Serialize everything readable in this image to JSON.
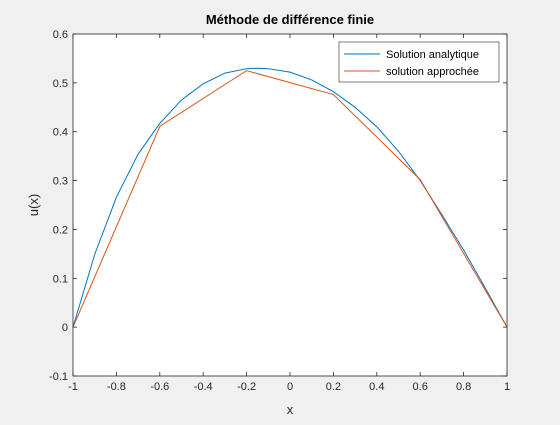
{
  "chart_data": {
    "type": "line",
    "title": "Méthode de différence finie",
    "xlabel": "x",
    "ylabel": "u(x)",
    "xlim": [
      -1,
      1
    ],
    "ylim": [
      -0.1,
      0.6
    ],
    "xticks": [
      -1,
      -0.8,
      -0.6,
      -0.4,
      -0.2,
      0,
      0.2,
      0.4,
      0.6,
      0.8,
      1
    ],
    "xtick_labels": [
      "-1",
      "-0.8",
      "-0.6",
      "-0.4",
      "-0.2",
      "0",
      "0.2",
      "0.4",
      "0.6",
      "0.8",
      "1"
    ],
    "yticks": [
      -0.1,
      0,
      0.1,
      0.2,
      0.3,
      0.4,
      0.5,
      0.6
    ],
    "ytick_labels": [
      "-0.1",
      "0",
      "0.1",
      "0.2",
      "0.3",
      "0.4",
      "0.5",
      "0.6"
    ],
    "grid": false,
    "legend_position": "top-right",
    "series": [
      {
        "name": "Solution analytique",
        "color": "#0072BD",
        "x": [
          -1,
          -0.9,
          -0.8,
          -0.7,
          -0.6,
          -0.5,
          -0.4,
          -0.3,
          -0.2,
          -0.15,
          -0.1,
          0,
          0.1,
          0.2,
          0.3,
          0.4,
          0.5,
          0.6,
          0.7,
          0.8,
          0.9,
          1
        ],
        "y": [
          0,
          0.149,
          0.266,
          0.354,
          0.417,
          0.465,
          0.498,
          0.52,
          0.529,
          0.53,
          0.529,
          0.522,
          0.506,
          0.482,
          0.45,
          0.41,
          0.36,
          0.3,
          0.23,
          0.158,
          0.08,
          0
        ]
      },
      {
        "name": "solution approchée",
        "color": "#D95319",
        "x": [
          -1,
          -0.6,
          -0.2,
          0.2,
          0.6,
          1
        ],
        "y": [
          0,
          0.411,
          0.525,
          0.476,
          0.302,
          0
        ]
      }
    ]
  }
}
